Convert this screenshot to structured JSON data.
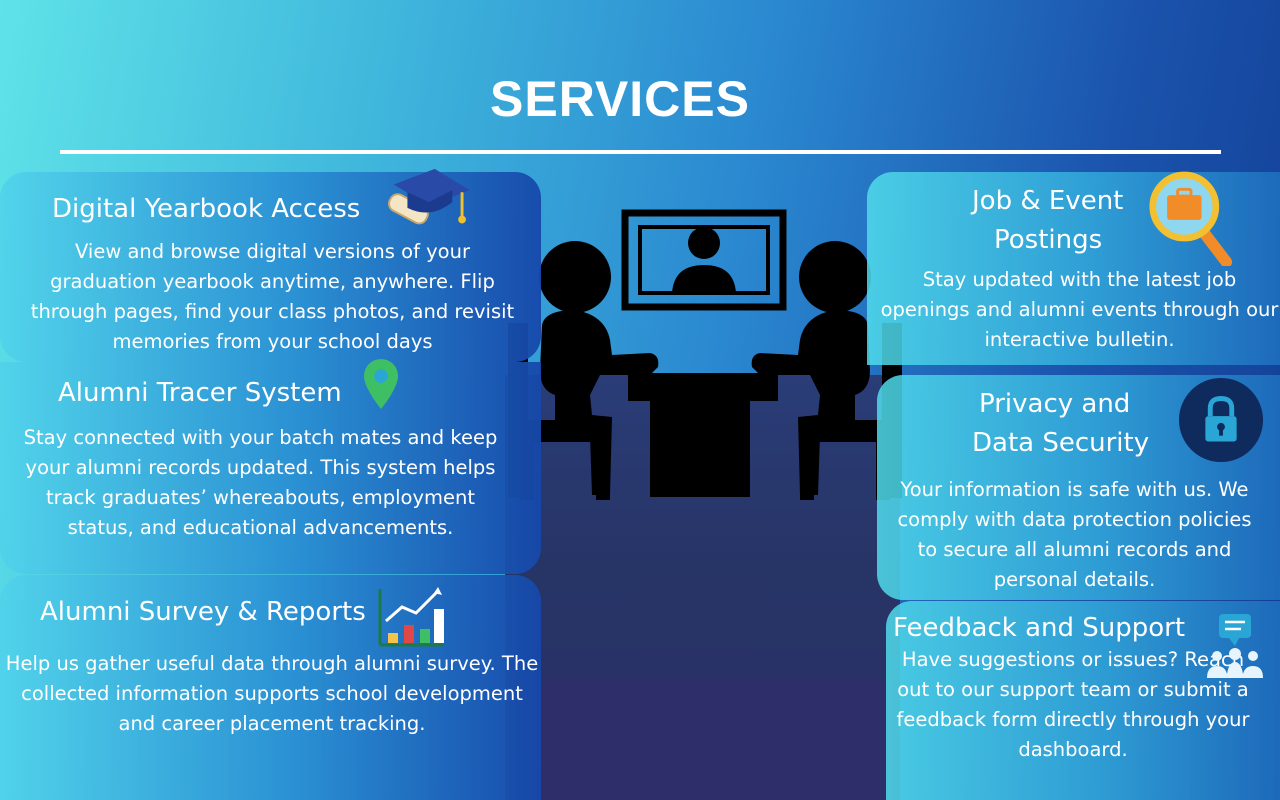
{
  "page": {
    "title": "SERVICES"
  },
  "services": {
    "yearbook": {
      "title": "Digital Yearbook Access",
      "description": "View and browse digital versions of your graduation yearbook anytime, anywhere. Flip through pages, find your class photos, and revisit memories from your school days",
      "icon": "graduation-cap-icon"
    },
    "tracer": {
      "title": "Alumni Tracer System",
      "description": "Stay connected with your batch mates and keep your alumni records updated. This system helps track graduates’ whereabouts, employment status, and educational advancements.",
      "icon": "location-pin-icon"
    },
    "survey": {
      "title": "Alumni Survey & Reports",
      "description": "Help us gather useful data through alumni survey. The collected information supports school development and career placement tracking.",
      "icon": "bar-chart-icon"
    },
    "jobs": {
      "title_line1": "Job & Event",
      "title_line2": "Postings",
      "description": "Stay updated with the latest job openings and alumni events through our interactive bulletin.",
      "icon": "briefcase-search-icon"
    },
    "privacy": {
      "title_line1": "Privacy and",
      "title_line2": "Data Security",
      "description": "Your information is safe with us. We comply with data protection policies to secure all alumni records and personal details.",
      "icon": "lock-icon"
    },
    "feedback": {
      "title": "Feedback and Support",
      "description": "Have suggestions or issues? Reach out to our support team or submit a feedback form directly through your dashboard.",
      "icon": "support-chat-icon"
    }
  },
  "colors": {
    "accent_green": "#3fbf63",
    "accent_orange": "#f28c28",
    "dark_navy": "#0f2a5c"
  }
}
